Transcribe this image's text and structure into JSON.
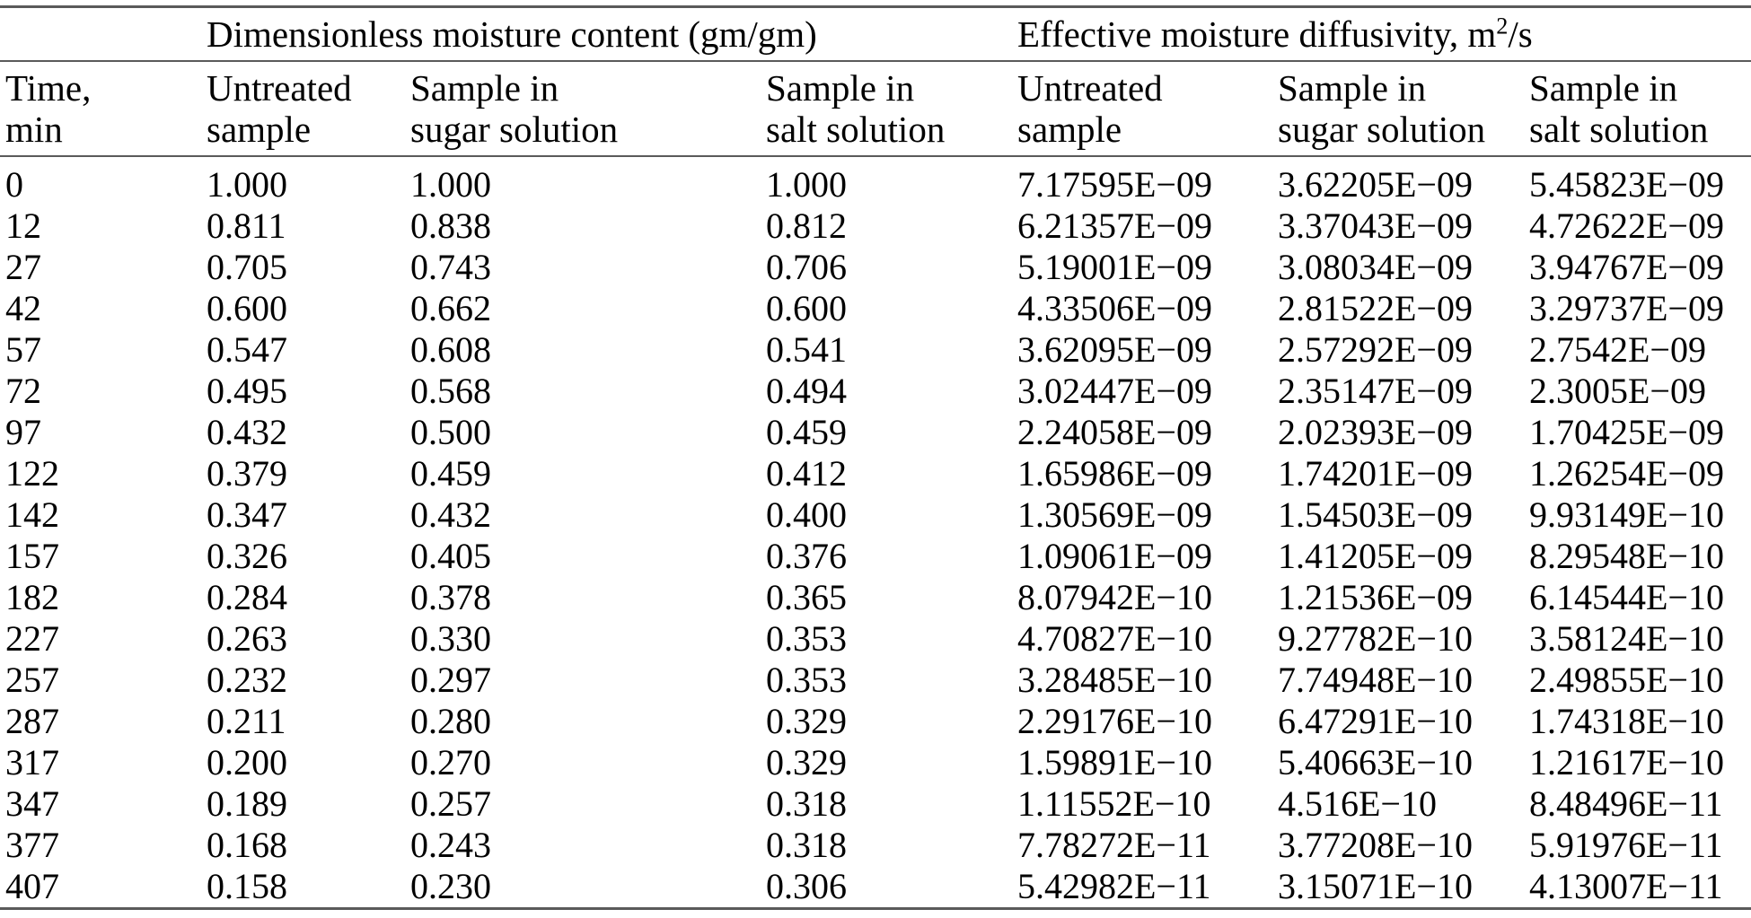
{
  "table": {
    "group_headers": {
      "moisture": "Dimensionless moisture content (gm/gm)",
      "diffusivity": {
        "before": "Effective moisture diffusivity, m",
        "sup": "2",
        "after": "/s"
      }
    },
    "column_headers": {
      "time": [
        "Time,",
        "min"
      ],
      "m_untreated": [
        "Untreated",
        "sample"
      ],
      "m_sugar": [
        "Sample in",
        "sugar solution"
      ],
      "m_salt": [
        "Sample in",
        "salt solution"
      ],
      "d_untreated": [
        "Untreated",
        "sample"
      ],
      "d_sugar": [
        "Sample in",
        "sugar solution"
      ],
      "d_salt": [
        "Sample in",
        "salt solution"
      ]
    },
    "rows": [
      [
        "0",
        "1.000",
        "1.000",
        "1.000",
        "7.17595E−09",
        "3.62205E−09",
        "5.45823E−09"
      ],
      [
        "12",
        "0.811",
        "0.838",
        "0.812",
        "6.21357E−09",
        "3.37043E−09",
        "4.72622E−09"
      ],
      [
        "27",
        "0.705",
        "0.743",
        "0.706",
        "5.19001E−09",
        "3.08034E−09",
        "3.94767E−09"
      ],
      [
        "42",
        "0.600",
        "0.662",
        "0.600",
        "4.33506E−09",
        "2.81522E−09",
        "3.29737E−09"
      ],
      [
        "57",
        "0.547",
        "0.608",
        "0.541",
        "3.62095E−09",
        "2.57292E−09",
        "2.7542E−09"
      ],
      [
        "72",
        "0.495",
        "0.568",
        "0.494",
        "3.02447E−09",
        "2.35147E−09",
        "2.3005E−09"
      ],
      [
        "97",
        "0.432",
        "0.500",
        "0.459",
        "2.24058E−09",
        "2.02393E−09",
        "1.70425E−09"
      ],
      [
        "122",
        "0.379",
        "0.459",
        "0.412",
        "1.65986E−09",
        "1.74201E−09",
        "1.26254E−09"
      ],
      [
        "142",
        "0.347",
        "0.432",
        "0.400",
        "1.30569E−09",
        "1.54503E−09",
        "9.93149E−10"
      ],
      [
        "157",
        "0.326",
        "0.405",
        "0.376",
        "1.09061E−09",
        "1.41205E−09",
        "8.29548E−10"
      ],
      [
        "182",
        "0.284",
        "0.378",
        "0.365",
        "8.07942E−10",
        "1.21536E−09",
        "6.14544E−10"
      ],
      [
        "227",
        "0.263",
        "0.330",
        "0.353",
        "4.70827E−10",
        "9.27782E−10",
        "3.58124E−10"
      ],
      [
        "257",
        "0.232",
        "0.297",
        "0.353",
        "3.28485E−10",
        "7.74948E−10",
        "2.49855E−10"
      ],
      [
        "287",
        "0.211",
        "0.280",
        "0.329",
        "2.29176E−10",
        "6.47291E−10",
        "1.74318E−10"
      ],
      [
        "317",
        "0.200",
        "0.270",
        "0.329",
        "1.59891E−10",
        "5.40663E−10",
        "1.21617E−10"
      ],
      [
        "347",
        "0.189",
        "0.257",
        "0.318",
        "1.11552E−10",
        "4.516E−10",
        "8.48496E−11"
      ],
      [
        "377",
        "0.168",
        "0.243",
        "0.318",
        "7.78272E−11",
        "3.77208E−10",
        "5.91976E−11"
      ],
      [
        "407",
        "0.158",
        "0.230",
        "0.306",
        "5.42982E−11",
        "3.15071E−10",
        "4.13007E−11"
      ]
    ]
  },
  "chart_data": {
    "type": "table",
    "title": "",
    "column_groups": [
      "Dimensionless moisture content (gm/gm)",
      "Effective moisture diffusivity, m2/s"
    ],
    "columns": [
      "Time, min",
      "Moisture content: Untreated sample",
      "Moisture content: Sample in sugar solution",
      "Moisture content: Sample in salt solution",
      "Diffusivity: Untreated sample",
      "Diffusivity: Sample in sugar solution",
      "Diffusivity: Sample in salt solution"
    ],
    "rows": [
      [
        0,
        1.0,
        1.0,
        1.0,
        "7.17595E-09",
        "3.62205E-09",
        "5.45823E-09"
      ],
      [
        12,
        0.811,
        0.838,
        0.812,
        "6.21357E-09",
        "3.37043E-09",
        "4.72622E-09"
      ],
      [
        27,
        0.705,
        0.743,
        0.706,
        "5.19001E-09",
        "3.08034E-09",
        "3.94767E-09"
      ],
      [
        42,
        0.6,
        0.662,
        0.6,
        "4.33506E-09",
        "2.81522E-09",
        "3.29737E-09"
      ],
      [
        57,
        0.547,
        0.608,
        0.541,
        "3.62095E-09",
        "2.57292E-09",
        "2.7542E-09"
      ],
      [
        72,
        0.495,
        0.568,
        0.494,
        "3.02447E-09",
        "2.35147E-09",
        "2.3005E-09"
      ],
      [
        97,
        0.432,
        0.5,
        0.459,
        "2.24058E-09",
        "2.02393E-09",
        "1.70425E-09"
      ],
      [
        122,
        0.379,
        0.459,
        0.412,
        "1.65986E-09",
        "1.74201E-09",
        "1.26254E-09"
      ],
      [
        142,
        0.347,
        0.432,
        0.4,
        "1.30569E-09",
        "1.54503E-09",
        "9.93149E-10"
      ],
      [
        157,
        0.326,
        0.405,
        0.376,
        "1.09061E-09",
        "1.41205E-09",
        "8.29548E-10"
      ],
      [
        182,
        0.284,
        0.378,
        0.365,
        "8.07942E-10",
        "1.21536E-09",
        "6.14544E-10"
      ],
      [
        227,
        0.263,
        0.33,
        0.353,
        "4.70827E-10",
        "9.27782E-10",
        "3.58124E-10"
      ],
      [
        257,
        0.232,
        0.297,
        0.353,
        "3.28485E-10",
        "7.74948E-10",
        "2.49855E-10"
      ],
      [
        287,
        0.211,
        0.28,
        0.329,
        "2.29176E-10",
        "6.47291E-10",
        "1.74318E-10"
      ],
      [
        317,
        0.2,
        0.27,
        0.329,
        "1.59891E-10",
        "5.40663E-10",
        "1.21617E-10"
      ],
      [
        347,
        0.189,
        0.257,
        0.318,
        "1.11552E-10",
        "4.516E-10",
        "8.48496E-11"
      ],
      [
        377,
        0.168,
        0.243,
        0.318,
        "7.78272E-11",
        "3.77208E-10",
        "5.91976E-11"
      ],
      [
        407,
        0.158,
        0.23,
        0.306,
        "5.42982E-11",
        "3.15071E-10",
        "4.13007E-11"
      ]
    ]
  }
}
